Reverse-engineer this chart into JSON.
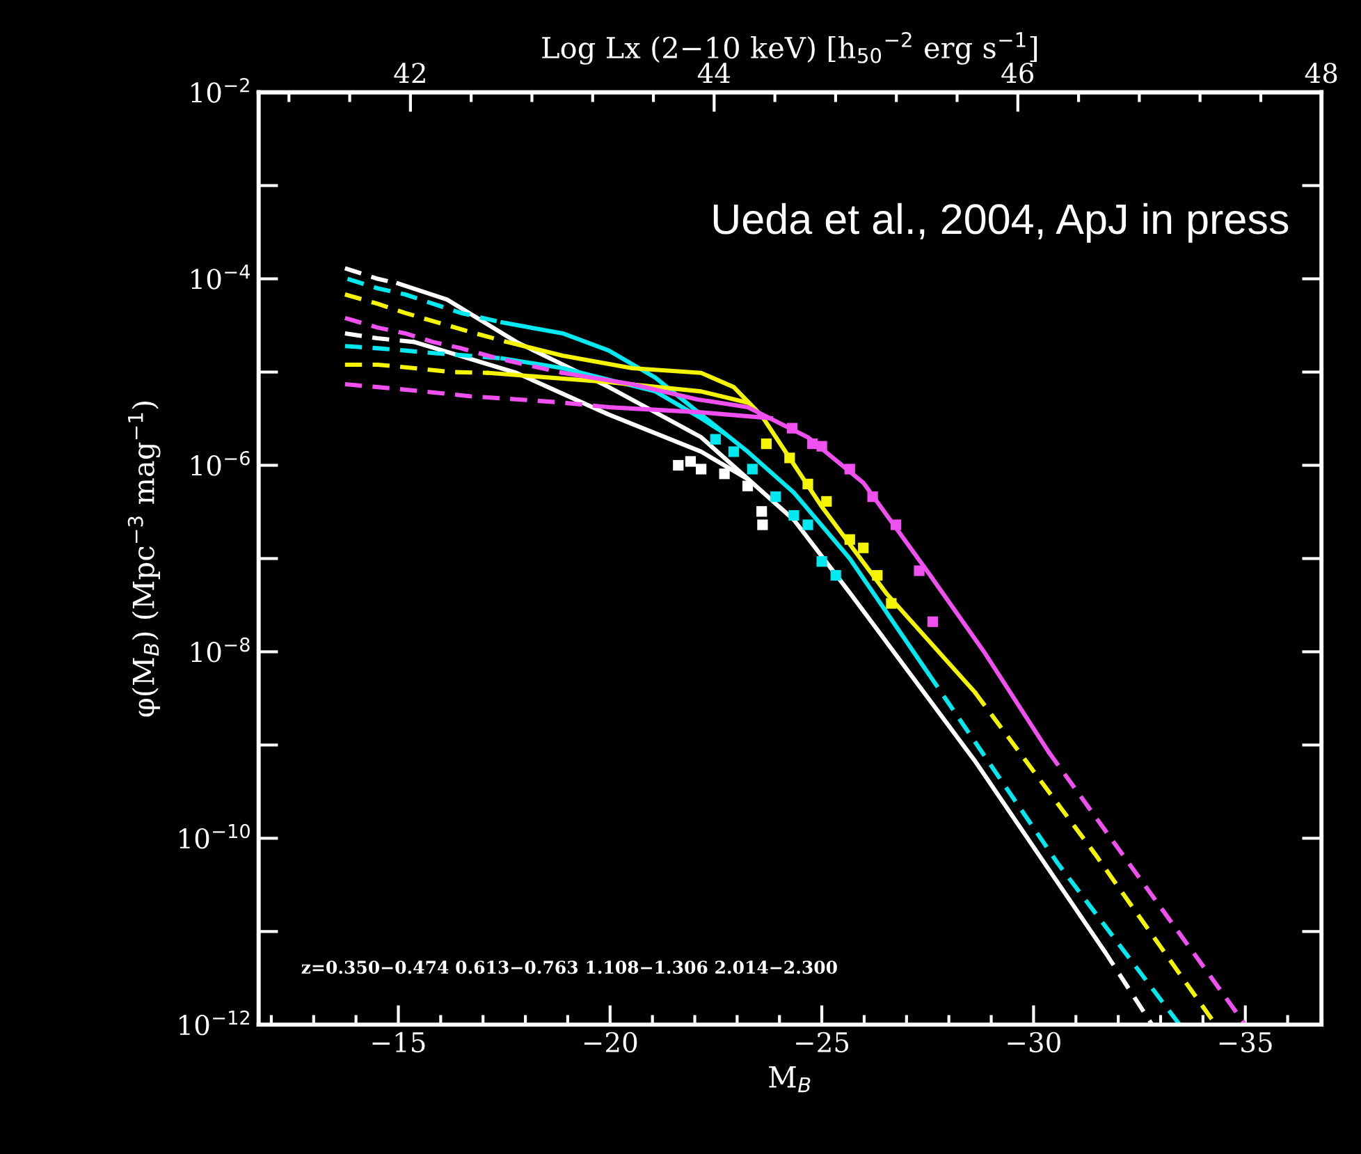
{
  "chart_data": {
    "type": "line",
    "xlabel": "M$_{B}$",
    "ylabel": "φ(M$_{B}$) (Mpc$^{−3}$ mag$^{−1}$)",
    "x2label": "Log Lx (2−10 keV) [h$_{50}$$^{−2}$ erg s$^{−1}$]",
    "annotations": [
      "Ueda et al., 2004, ApJ in press",
      "z=0.350−0.474 0.613−0.763 1.108−1.306 2.014−2.300"
    ],
    "log": "y",
    "grid": false,
    "xlim": [
      -11.7,
      -36.8
    ],
    "xticks": [
      {
        "value": -15,
        "label": "−15"
      },
      {
        "value": -20,
        "label": "−20"
      },
      {
        "value": -25,
        "label": "−25"
      },
      {
        "value": -30,
        "label": "−30"
      },
      {
        "value": -35,
        "label": "−35"
      }
    ],
    "x2lim": [
      41.0,
      48.0
    ],
    "x2ticks": [
      42,
      44,
      46,
      48
    ],
    "ylim": [
      1e-12,
      0.01
    ],
    "yticks": [
      {
        "value": 0.01,
        "label": "10$^{−2}$"
      },
      {
        "value": 0.001,
        "label": null
      },
      {
        "value": 0.0001,
        "label": "10$^{−4}$"
      },
      {
        "value": 1e-05,
        "label": null
      },
      {
        "value": 1e-06,
        "label": "10$^{−6}$"
      },
      {
        "value": 1e-07,
        "label": null
      },
      {
        "value": 1e-08,
        "label": "10$^{−8}$"
      },
      {
        "value": 1e-09,
        "label": null
      },
      {
        "value": 1e-10,
        "label": "10$^{−10}$"
      },
      {
        "value": 1e-11,
        "label": null
      },
      {
        "value": 1e-12,
        "label": "10$^{−12}$"
      }
    ],
    "series": [
      {
        "type": "line",
        "line_style": "dashed",
        "color": "#ffffff",
        "x": [
          -13.74,
          -14.51,
          -15.0
        ],
        "values": [
          0.00013,
          0.0001,
          8.9e-05
        ]
      },
      {
        "type": "line",
        "line_style": "solid",
        "color": "#ffffff",
        "x": [
          -15.0,
          -16.15,
          -17.79,
          -19.97,
          -22.15,
          -24.34,
          -25.66,
          -28.61,
          -31.67
        ],
        "values": [
          8.9e-05,
          6e-05,
          2.1e-05,
          6.9e-06,
          2e-06,
          2.6e-07,
          4.3e-08,
          6.8e-10,
          6.2e-12
        ]
      },
      {
        "type": "line",
        "line_style": "dashed",
        "color": "#ffffff",
        "x": [
          -31.67,
          -32.8
        ],
        "values": [
          6.2e-12,
          1e-12
        ]
      },
      {
        "type": "line",
        "line_style": "dashed",
        "color": "#ffffff",
        "x": [
          -13.74,
          -14.51,
          -15.38
        ],
        "values": [
          2.6e-05,
          2.3e-05,
          2.1e-05
        ]
      },
      {
        "type": "line",
        "line_style": "solid",
        "color": "#ffffff",
        "x": [
          -15.38,
          -17.79,
          -19.97,
          -22.15,
          -23.25
        ],
        "values": [
          2.1e-05,
          9.8e-06,
          3.5e-06,
          1.4e-06,
          7.1e-07
        ]
      },
      {
        "type": "scatter",
        "marker": "square",
        "color": "#ffffff",
        "x": [
          -21.61,
          -21.9,
          -22.15,
          -22.7,
          -23.25,
          -23.58,
          -23.6
        ],
        "values": [
          1e-06,
          1.1e-06,
          9.1e-07,
          8.1e-07,
          6e-07,
          3.2e-07,
          2.3e-07
        ]
      },
      {
        "type": "line",
        "line_style": "dashed",
        "color": "#00e8f0",
        "x": [
          -13.8,
          -14.51,
          -15.16,
          -15.82,
          -16.48,
          -17.46
        ],
        "values": [
          0.0001,
          7.9e-05,
          6.8e-05,
          5.4e-05,
          4.3e-05,
          3.4e-05
        ]
      },
      {
        "type": "line",
        "line_style": "solid",
        "color": "#00e8f0",
        "x": [
          -17.46,
          -18.88,
          -19.97,
          -21.07,
          -22.15,
          -23.25,
          -24.34,
          -25.66,
          -27.51
        ],
        "values": [
          3.4e-05,
          2.6e-05,
          1.7e-05,
          8.7e-06,
          3.5e-06,
          1.4e-06,
          5.1e-07,
          1e-07,
          5.9e-09
        ]
      },
      {
        "type": "line",
        "line_style": "dashed",
        "color": "#00e8f0",
        "x": [
          -27.51,
          -30.57,
          -33.45
        ],
        "values": [
          5.9e-09,
          5.4e-11,
          1e-12
        ]
      },
      {
        "type": "line",
        "line_style": "dashed",
        "color": "#00e8f0",
        "x": [
          -13.74,
          -14.51,
          -15.16,
          -15.82,
          -17.46
        ],
        "values": [
          1.9e-05,
          1.8e-05,
          1.7e-05,
          1.6e-05,
          1.4e-05
        ]
      },
      {
        "type": "line",
        "line_style": "solid",
        "color": "#00e8f0",
        "x": [
          -17.46,
          -18.88,
          -21.07,
          -22.15,
          -22.7
        ],
        "values": [
          1.4e-05,
          1.1e-05,
          6.2e-06,
          3.2e-06,
          2.2e-06
        ]
      },
      {
        "type": "scatter",
        "marker": "square",
        "color": "#00e8f0",
        "x": [
          -22.49,
          -22.92,
          -23.36,
          -23.91,
          -24.34,
          -24.67,
          -25.0,
          -25.33
        ],
        "values": [
          1.9e-06,
          1.4e-06,
          9.1e-07,
          4.6e-07,
          2.9e-07,
          2.3e-07,
          9.3e-08,
          6.6e-08
        ]
      },
      {
        "type": "line",
        "line_style": "dashed",
        "color": "#f5f500",
        "x": [
          -13.74,
          -14.51,
          -15.16,
          -15.93,
          -16.69,
          -17.57
        ],
        "values": [
          6.8e-05,
          5.4e-05,
          4.3e-05,
          3.4e-05,
          2.7e-05,
          2.1e-05
        ]
      },
      {
        "type": "line",
        "line_style": "solid",
        "color": "#f5f500",
        "x": [
          -17.57,
          -18.88,
          -20.52,
          -22.15,
          -22.92,
          -23.58,
          -25.0,
          -26.53,
          -28.61
        ],
        "values": [
          2.1e-05,
          1.5e-05,
          1.1e-05,
          9.8e-06,
          6.9e-06,
          3.4e-06,
          3.6e-07,
          4.2e-08,
          3.7e-09
        ]
      },
      {
        "type": "line",
        "line_style": "dashed",
        "color": "#f5f500",
        "x": [
          -28.61,
          -31.45,
          -34.3
        ],
        "values": [
          3.7e-09,
          6.8e-11,
          1e-12
        ]
      },
      {
        "type": "line",
        "line_style": "dashed",
        "color": "#f5f500",
        "x": [
          -13.74,
          -14.51,
          -15.38,
          -16.26,
          -17.13
        ],
        "values": [
          1.2e-05,
          1.2e-05,
          1.1e-05,
          1e-05,
          9.8e-06
        ]
      },
      {
        "type": "line",
        "line_style": "solid",
        "color": "#f5f500",
        "x": [
          -17.13,
          -19.97,
          -22.15,
          -23.25
        ],
        "values": [
          9.8e-06,
          7.8e-06,
          6.2e-06,
          4.7e-06
        ]
      },
      {
        "type": "scatter",
        "marker": "square",
        "color": "#f5f500",
        "x": [
          -23.69,
          -24.24,
          -24.67,
          -25.11,
          -25.66,
          -25.98,
          -26.31,
          -26.64
        ],
        "values": [
          1.7e-06,
          1.2e-06,
          6.3e-07,
          4.1e-07,
          1.6e-07,
          1.3e-07,
          6.6e-08,
          3.3e-08
        ]
      },
      {
        "type": "line",
        "line_style": "dashed",
        "color": "#f050f0",
        "x": [
          -13.74,
          -14.51,
          -15.16,
          -15.82,
          -16.48,
          -17.35,
          -18.88
        ],
        "values": [
          3.8e-05,
          3e-05,
          2.6e-05,
          2.1e-05,
          1.8e-05,
          1.4e-05,
          9.8e-06
        ]
      },
      {
        "type": "line",
        "line_style": "solid",
        "color": "#f050f0",
        "x": [
          -18.88,
          -20.52,
          -22.05,
          -23.25,
          -24.67,
          -25.98,
          -27.51,
          -28.83,
          -30.35
        ],
        "values": [
          9.8e-06,
          7.4e-06,
          5.1e-06,
          4.2e-06,
          2e-06,
          6.5e-07,
          7.1e-08,
          1e-08,
          8.5e-10
        ]
      },
      {
        "type": "line",
        "line_style": "dashed",
        "color": "#f050f0",
        "x": [
          -30.35,
          -35.0
        ],
        "values": [
          8.5e-10,
          1e-12
        ]
      },
      {
        "type": "line",
        "line_style": "dashed",
        "color": "#f050f0",
        "x": [
          -13.74,
          -14.51,
          -15.6,
          -16.69,
          -17.79,
          -18.88,
          -19.97
        ],
        "values": [
          7.4e-06,
          6.9e-06,
          6.2e-06,
          5.5e-06,
          5.1e-06,
          4.7e-06,
          4.2e-06
        ]
      },
      {
        "type": "line",
        "line_style": "solid",
        "color": "#f050f0",
        "x": [
          -19.97,
          -22.15,
          -23.8
        ],
        "values": [
          4.2e-06,
          3.7e-06,
          3.2e-06
        ]
      },
      {
        "type": "scatter",
        "marker": "square",
        "color": "#f050f0",
        "x": [
          -24.3,
          -24.78,
          -25.0,
          -25.66,
          -26.2,
          -26.75,
          -27.3,
          -27.62
        ],
        "values": [
          2.5e-06,
          1.7e-06,
          1.6e-06,
          9.1e-07,
          4.6e-07,
          2.3e-07,
          7.4e-08,
          2.1e-08
        ]
      }
    ]
  }
}
